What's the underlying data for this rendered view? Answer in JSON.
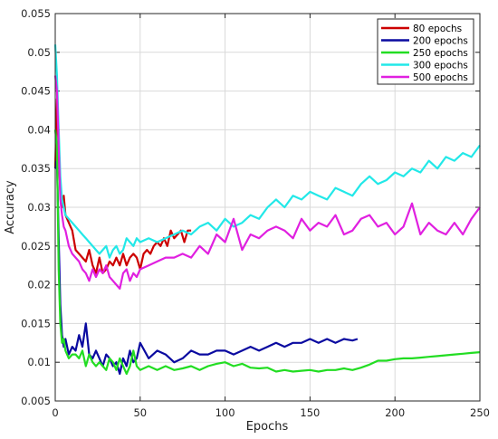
{
  "chart_data": {
    "type": "line",
    "xlabel": "Epochs",
    "ylabel": "Accuracy",
    "xlim": [
      0,
      250
    ],
    "ylim": [
      0.005,
      0.055
    ],
    "xticks": [
      0,
      50,
      100,
      150,
      200,
      250
    ],
    "xtick_labels": [
      "0",
      "50",
      "100",
      "150",
      "200",
      "250"
    ],
    "yticks": [
      0.005,
      0.01,
      0.015,
      0.02,
      0.025,
      0.03,
      0.035,
      0.04,
      0.045,
      0.05,
      0.055
    ],
    "ytick_labels": [
      "0.005",
      "0.01",
      "0.015",
      "0.02",
      "0.025",
      "0.03",
      "0.035",
      "0.04",
      "0.045",
      "0.05",
      "0.055"
    ],
    "grid": true,
    "legend_position": "top-right",
    "series": [
      {
        "name": "80 epochs",
        "color": "#cc0000",
        "x": [
          0,
          1,
          2,
          3,
          4,
          5,
          6,
          8,
          10,
          12,
          14,
          16,
          18,
          20,
          22,
          24,
          26,
          28,
          30,
          32,
          34,
          36,
          38,
          40,
          42,
          44,
          46,
          48,
          50,
          52,
          54,
          56,
          58,
          60,
          62,
          64,
          66,
          68,
          70,
          72,
          74,
          76,
          78,
          80
        ],
        "y": [
          0.035,
          0.044,
          0.037,
          0.032,
          0.03,
          0.0315,
          0.029,
          0.028,
          0.027,
          0.0245,
          0.024,
          0.0235,
          0.023,
          0.0245,
          0.0225,
          0.0215,
          0.0235,
          0.0215,
          0.022,
          0.023,
          0.0225,
          0.0235,
          0.0225,
          0.024,
          0.0225,
          0.0235,
          0.024,
          0.0235,
          0.022,
          0.024,
          0.0245,
          0.024,
          0.025,
          0.0255,
          0.025,
          0.026,
          0.025,
          0.027,
          0.026,
          0.0265,
          0.027,
          0.0255,
          0.027,
          0.027
        ]
      },
      {
        "name": "200 epochs",
        "color": "#0a0aa0",
        "x": [
          0,
          1,
          2,
          3,
          4,
          5,
          6,
          8,
          10,
          12,
          14,
          16,
          18,
          20,
          22,
          24,
          26,
          28,
          30,
          32,
          34,
          36,
          38,
          40,
          42,
          44,
          46,
          48,
          50,
          55,
          60,
          65,
          70,
          75,
          80,
          85,
          90,
          95,
          100,
          105,
          110,
          115,
          120,
          125,
          130,
          135,
          140,
          145,
          150,
          155,
          160,
          165,
          170,
          175,
          178
        ],
        "y": [
          0.035,
          0.036,
          0.026,
          0.0175,
          0.0135,
          0.012,
          0.013,
          0.011,
          0.012,
          0.0115,
          0.0135,
          0.012,
          0.015,
          0.011,
          0.0105,
          0.0115,
          0.0105,
          0.0095,
          0.011,
          0.0105,
          0.0095,
          0.01,
          0.0085,
          0.0105,
          0.0095,
          0.0115,
          0.01,
          0.0105,
          0.0125,
          0.0105,
          0.0115,
          0.011,
          0.01,
          0.0105,
          0.0115,
          0.011,
          0.011,
          0.0115,
          0.0115,
          0.011,
          0.0115,
          0.012,
          0.0115,
          0.012,
          0.0125,
          0.012,
          0.0125,
          0.0125,
          0.013,
          0.0125,
          0.013,
          0.0125,
          0.013,
          0.0128,
          0.013
        ]
      },
      {
        "name": "250 epochs",
        "color": "#22dd22",
        "x": [
          0,
          1,
          2,
          3,
          4,
          5,
          6,
          8,
          10,
          12,
          14,
          16,
          18,
          20,
          22,
          24,
          26,
          28,
          30,
          32,
          34,
          36,
          38,
          40,
          42,
          44,
          46,
          48,
          50,
          55,
          60,
          65,
          70,
          75,
          80,
          85,
          90,
          95,
          100,
          105,
          110,
          115,
          120,
          125,
          130,
          135,
          140,
          145,
          150,
          155,
          160,
          165,
          170,
          175,
          180,
          185,
          190,
          195,
          200,
          205,
          210,
          215,
          220,
          225,
          230,
          235,
          240,
          245,
          250
        ],
        "y": [
          0.04,
          0.038,
          0.022,
          0.015,
          0.0125,
          0.013,
          0.0115,
          0.0105,
          0.011,
          0.011,
          0.0105,
          0.0115,
          0.0095,
          0.011,
          0.01,
          0.0095,
          0.01,
          0.0095,
          0.009,
          0.0105,
          0.01,
          0.009,
          0.0105,
          0.0095,
          0.0085,
          0.0095,
          0.0115,
          0.0095,
          0.009,
          0.0095,
          0.009,
          0.0095,
          0.009,
          0.0092,
          0.0095,
          0.009,
          0.0095,
          0.0098,
          0.01,
          0.0095,
          0.0098,
          0.0093,
          0.0092,
          0.0093,
          0.0088,
          0.009,
          0.0088,
          0.0089,
          0.009,
          0.0088,
          0.009,
          0.009,
          0.0092,
          0.009,
          0.0093,
          0.0097,
          0.0102,
          0.0102,
          0.0104,
          0.0105,
          0.0105,
          0.0106,
          0.0107,
          0.0108,
          0.0109,
          0.011,
          0.0111,
          0.0112,
          0.0113
        ]
      },
      {
        "name": "300 epochs",
        "color": "#22e8e8",
        "x": [
          0,
          1,
          2,
          3,
          4,
          5,
          6,
          8,
          10,
          12,
          14,
          16,
          18,
          20,
          22,
          24,
          26,
          28,
          30,
          32,
          34,
          36,
          38,
          40,
          42,
          44,
          46,
          48,
          50,
          55,
          60,
          65,
          70,
          75,
          80,
          85,
          90,
          95,
          100,
          105,
          110,
          115,
          120,
          125,
          130,
          135,
          140,
          145,
          150,
          155,
          160,
          165,
          170,
          175,
          180,
          185,
          190,
          195,
          200,
          205,
          210,
          215,
          220,
          225,
          230,
          235,
          240,
          245,
          250
        ],
        "y": [
          0.051,
          0.047,
          0.04,
          0.034,
          0.031,
          0.03,
          0.029,
          0.0285,
          0.028,
          0.0275,
          0.027,
          0.0265,
          0.026,
          0.0255,
          0.025,
          0.0245,
          0.024,
          0.0245,
          0.025,
          0.0235,
          0.0245,
          0.025,
          0.024,
          0.0245,
          0.026,
          0.0255,
          0.025,
          0.026,
          0.0255,
          0.026,
          0.0255,
          0.026,
          0.0265,
          0.027,
          0.0265,
          0.0275,
          0.028,
          0.027,
          0.0285,
          0.0275,
          0.028,
          0.029,
          0.0285,
          0.03,
          0.031,
          0.03,
          0.0315,
          0.031,
          0.032,
          0.0315,
          0.031,
          0.0325,
          0.032,
          0.0315,
          0.033,
          0.034,
          0.033,
          0.0335,
          0.0345,
          0.034,
          0.035,
          0.0345,
          0.036,
          0.035,
          0.0365,
          0.036,
          0.037,
          0.0365,
          0.038
        ]
      },
      {
        "name": "500 epochs",
        "color": "#e020e0",
        "x": [
          0,
          1,
          2,
          3,
          4,
          5,
          6,
          8,
          10,
          12,
          14,
          16,
          18,
          20,
          22,
          24,
          26,
          28,
          30,
          32,
          34,
          36,
          38,
          40,
          42,
          44,
          46,
          48,
          50,
          55,
          60,
          65,
          70,
          75,
          80,
          85,
          90,
          95,
          100,
          105,
          110,
          115,
          120,
          125,
          130,
          135,
          140,
          145,
          150,
          155,
          160,
          165,
          170,
          175,
          180,
          185,
          190,
          195,
          200,
          205,
          210,
          215,
          220,
          225,
          230,
          235,
          240,
          245,
          250
        ],
        "y": [
          0.047,
          0.045,
          0.038,
          0.031,
          0.029,
          0.0275,
          0.027,
          0.025,
          0.024,
          0.0235,
          0.023,
          0.022,
          0.0215,
          0.0205,
          0.022,
          0.021,
          0.022,
          0.0215,
          0.0225,
          0.021,
          0.0205,
          0.02,
          0.0195,
          0.0215,
          0.022,
          0.0205,
          0.0215,
          0.021,
          0.022,
          0.0225,
          0.023,
          0.0235,
          0.0235,
          0.024,
          0.0235,
          0.025,
          0.024,
          0.0265,
          0.0255,
          0.0285,
          0.0245,
          0.0265,
          0.026,
          0.027,
          0.0275,
          0.027,
          0.026,
          0.0285,
          0.027,
          0.028,
          0.0275,
          0.029,
          0.0265,
          0.027,
          0.0285,
          0.029,
          0.0275,
          0.028,
          0.0265,
          0.0275,
          0.0305,
          0.0265,
          0.028,
          0.027,
          0.0265,
          0.028,
          0.0265,
          0.0285,
          0.03
        ]
      }
    ]
  }
}
